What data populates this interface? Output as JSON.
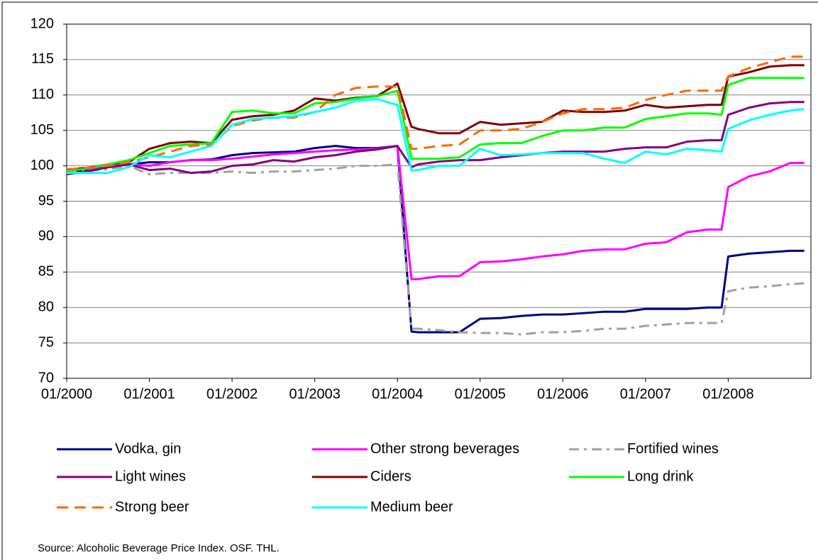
{
  "chart_data": {
    "type": "line",
    "x": [
      2000,
      2000.25,
      2000.5,
      2000.75,
      2001,
      2001.25,
      2001.5,
      2001.75,
      2002,
      2002.25,
      2002.5,
      2002.75,
      2003,
      2003.25,
      2003.5,
      2003.75,
      2004,
      2004.17,
      2004.25,
      2004.5,
      2004.75,
      2005,
      2005.25,
      2005.5,
      2005.75,
      2006,
      2006.25,
      2006.5,
      2006.75,
      2007,
      2007.25,
      2007.5,
      2007.75,
      2007.92,
      2008,
      2008.25,
      2008.5,
      2008.75,
      2008.92
    ],
    "xlim": [
      2000,
      2009
    ],
    "xticks": [
      {
        "value": 2000,
        "label": "01/2000"
      },
      {
        "value": 2001,
        "label": "01/2001"
      },
      {
        "value": 2002,
        "label": "01/2002"
      },
      {
        "value": 2003,
        "label": "01/2003"
      },
      {
        "value": 2004,
        "label": "01/2004"
      },
      {
        "value": 2005,
        "label": "01/2005"
      },
      {
        "value": 2006,
        "label": "01/2006"
      },
      {
        "value": 2007,
        "label": "01/2007"
      },
      {
        "value": 2008,
        "label": "01/2008"
      }
    ],
    "ylim": [
      70,
      120
    ],
    "yticks": [
      70,
      75,
      80,
      85,
      90,
      95,
      100,
      105,
      110,
      115,
      120
    ],
    "grid": true,
    "source": "Source: Alcoholic Beverage Price Index. OSF. THL.",
    "series": [
      {
        "name": "Vodka, gin",
        "color": "#000080",
        "dash": "solid",
        "values": [
          99.3,
          99.3,
          99.8,
          100.2,
          100.5,
          100.5,
          100.8,
          100.9,
          101.5,
          101.8,
          101.9,
          102,
          102.5,
          102.8,
          102.5,
          102.5,
          102.8,
          76.6,
          76.5,
          76.5,
          76.5,
          78.4,
          78.5,
          78.8,
          79,
          79,
          79.2,
          79.4,
          79.4,
          79.8,
          79.8,
          79.8,
          80,
          80,
          87.2,
          87.6,
          87.8,
          88,
          88
        ]
      },
      {
        "name": "Other strong beverages",
        "color": "#ff00ff",
        "dash": "solid",
        "values": [
          99.5,
          99.6,
          99.8,
          100.2,
          100,
          100.5,
          100.8,
          100.8,
          101,
          101.3,
          101.6,
          101.8,
          102,
          102.2,
          102.3,
          102.4,
          102.8,
          84,
          84,
          84.4,
          84.4,
          86.4,
          86.5,
          86.8,
          87.2,
          87.5,
          88,
          88.2,
          88.2,
          89,
          89.2,
          90.6,
          91,
          91,
          97,
          98.5,
          99.2,
          100.4,
          100.4
        ]
      },
      {
        "name": "Fortified wines",
        "color": "#a0a0a0",
        "dash": "dashdot",
        "values": [
          99.3,
          99.3,
          99.5,
          100,
          98.8,
          99,
          99,
          99,
          99.2,
          99,
          99.2,
          99.2,
          99.4,
          99.6,
          100,
          100,
          100.2,
          77,
          77,
          76.8,
          76.5,
          76.4,
          76.4,
          76.2,
          76.5,
          76.5,
          76.7,
          77,
          77,
          77.4,
          77.6,
          77.8,
          77.8,
          77.8,
          82.3,
          82.8,
          83,
          83.3,
          83.4
        ]
      },
      {
        "name": "Light wines",
        "color": "#800080",
        "dash": "solid",
        "values": [
          98.8,
          99.2,
          99.8,
          100.2,
          99.4,
          99.6,
          99,
          99.2,
          100,
          100.2,
          100.8,
          100.6,
          101.2,
          101.5,
          102,
          102.3,
          102.8,
          99.8,
          100.2,
          100.6,
          100.8,
          100.8,
          101.2,
          101.5,
          101.8,
          102,
          102,
          102,
          102.4,
          102.6,
          102.6,
          103.4,
          103.6,
          103.6,
          107.2,
          108.2,
          108.8,
          109,
          109
        ]
      },
      {
        "name": "Ciders",
        "color": "#800000",
        "dash": "solid",
        "values": [
          99.5,
          99.7,
          100.2,
          100.5,
          102.4,
          103.2,
          103.4,
          103.2,
          106.5,
          107,
          107.2,
          107.8,
          109.5,
          109.2,
          109.6,
          109.8,
          111.6,
          105.5,
          105.2,
          104.6,
          104.6,
          106.2,
          105.8,
          106,
          106.2,
          107.8,
          107.6,
          107.6,
          107.8,
          108.6,
          108.2,
          108.4,
          108.6,
          108.6,
          112.6,
          113.2,
          114,
          114.2,
          114.2
        ]
      },
      {
        "name": "Long drink",
        "color": "#00ff00",
        "dash": "solid",
        "values": [
          99.3,
          99.6,
          100.2,
          100.8,
          101.8,
          102.8,
          103,
          103.2,
          107.6,
          107.8,
          107.4,
          107.4,
          108.8,
          109,
          109.5,
          109.8,
          110.6,
          101,
          101,
          101,
          101.2,
          103,
          103.2,
          103.2,
          104.2,
          105,
          105,
          105.4,
          105.4,
          106.6,
          107,
          107.4,
          107.4,
          107.2,
          111.4,
          112.4,
          112.4,
          112.4,
          112.4
        ]
      },
      {
        "name": "Strong beer",
        "color": "#ff6600",
        "dash": "dash",
        "values": [
          99.5,
          99.7,
          100,
          100.5,
          101.2,
          102,
          102.8,
          103,
          105.6,
          106.4,
          106.8,
          106.8,
          107.6,
          110,
          111,
          111.2,
          111.2,
          102.4,
          102.4,
          102.8,
          103,
          105,
          105,
          105.2,
          106.2,
          107.4,
          108,
          108,
          108.2,
          109.3,
          110,
          110.6,
          110.6,
          110.6,
          112.6,
          113.8,
          114.6,
          115.4,
          115.4
        ]
      },
      {
        "name": "Medium beer",
        "color": "#00ffff",
        "dash": "solid",
        "values": [
          99,
          99,
          99,
          99.8,
          101.5,
          101.2,
          102,
          102.8,
          105.8,
          106.6,
          106.8,
          107,
          107.6,
          108.2,
          109.2,
          109.4,
          108.6,
          99.3,
          99.4,
          100,
          100,
          102.4,
          101.5,
          101.6,
          101.8,
          101.8,
          101.8,
          101,
          100.4,
          102,
          101.6,
          102.4,
          102.2,
          102,
          105.2,
          106.4,
          107.2,
          107.8,
          108
        ]
      }
    ]
  }
}
